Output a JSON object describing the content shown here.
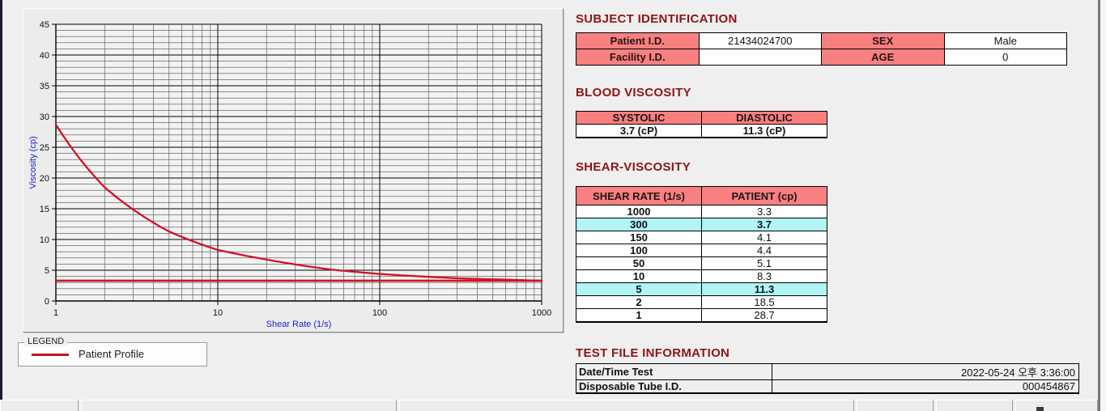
{
  "legend": {
    "caption": "LEGEND",
    "series_label": "Patient Profile"
  },
  "subject_identification": {
    "title": "SUBJECT IDENTIFICATION",
    "fields": [
      {
        "label": "Patient I.D.",
        "value": "21434024700"
      },
      {
        "label": "SEX",
        "value": "Male"
      },
      {
        "label": "Facility I.D.",
        "value": ""
      },
      {
        "label": "AGE",
        "value": "0"
      }
    ]
  },
  "blood_viscosity": {
    "title": "BLOOD VISCOSITY",
    "headers": [
      "SYSTOLIC",
      "DIASTOLIC"
    ],
    "values": [
      "3.7 (cP)",
      "11.3 (cP)"
    ]
  },
  "shear_viscosity": {
    "title": "SHEAR-VISCOSITY",
    "headers": [
      "SHEAR RATE (1/s)",
      "PATIENT (cp)"
    ],
    "rows": [
      {
        "rate": "1000",
        "value": "3.3"
      },
      {
        "rate": "300",
        "value": "3.7"
      },
      {
        "rate": "150",
        "value": "4.1"
      },
      {
        "rate": "100",
        "value": "4.4"
      },
      {
        "rate": "50",
        "value": "5.1"
      },
      {
        "rate": "10",
        "value": "8.3"
      },
      {
        "rate": "5",
        "value": "11.3"
      },
      {
        "rate": "2",
        "value": "18.5"
      },
      {
        "rate": "1",
        "value": "28.7"
      }
    ]
  },
  "test_file_information": {
    "title": "TEST FILE INFORMATION",
    "rows": [
      {
        "label": "Date/Time Test",
        "value": "2022-05-24   오후 3:36:00"
      },
      {
        "label": "Disposable Tube I.D.",
        "value": "000454867"
      }
    ]
  },
  "colors": {
    "title_maroon": "#8e1516",
    "header_pink": "#f88080",
    "highlight_cyan": "#b0f4f4",
    "curve_red": "#d11327",
    "axis_label_blue": "#2121cd"
  },
  "chart_data": {
    "type": "line",
    "title": "",
    "xlabel": "Shear Rate (1/s)",
    "ylabel": "Viscosity (cp)",
    "x_scale": "log",
    "xlim": [
      1,
      1000
    ],
    "ylim": [
      0,
      45
    ],
    "x_ticks": [
      1,
      10,
      100,
      1000
    ],
    "y_tick_step": 5,
    "y_minor_step": 1,
    "grid": true,
    "legend_position": "below-left",
    "series": [
      {
        "name": "Patient Profile",
        "color": "#d11327",
        "x": [
          1,
          2,
          5,
          10,
          50,
          100,
          150,
          300,
          1000
        ],
        "y": [
          28.7,
          18.5,
          11.3,
          8.3,
          5.1,
          4.4,
          4.1,
          3.7,
          3.3
        ]
      }
    ],
    "reference_line": {
      "y": 3.3,
      "color": "#d11327"
    }
  }
}
